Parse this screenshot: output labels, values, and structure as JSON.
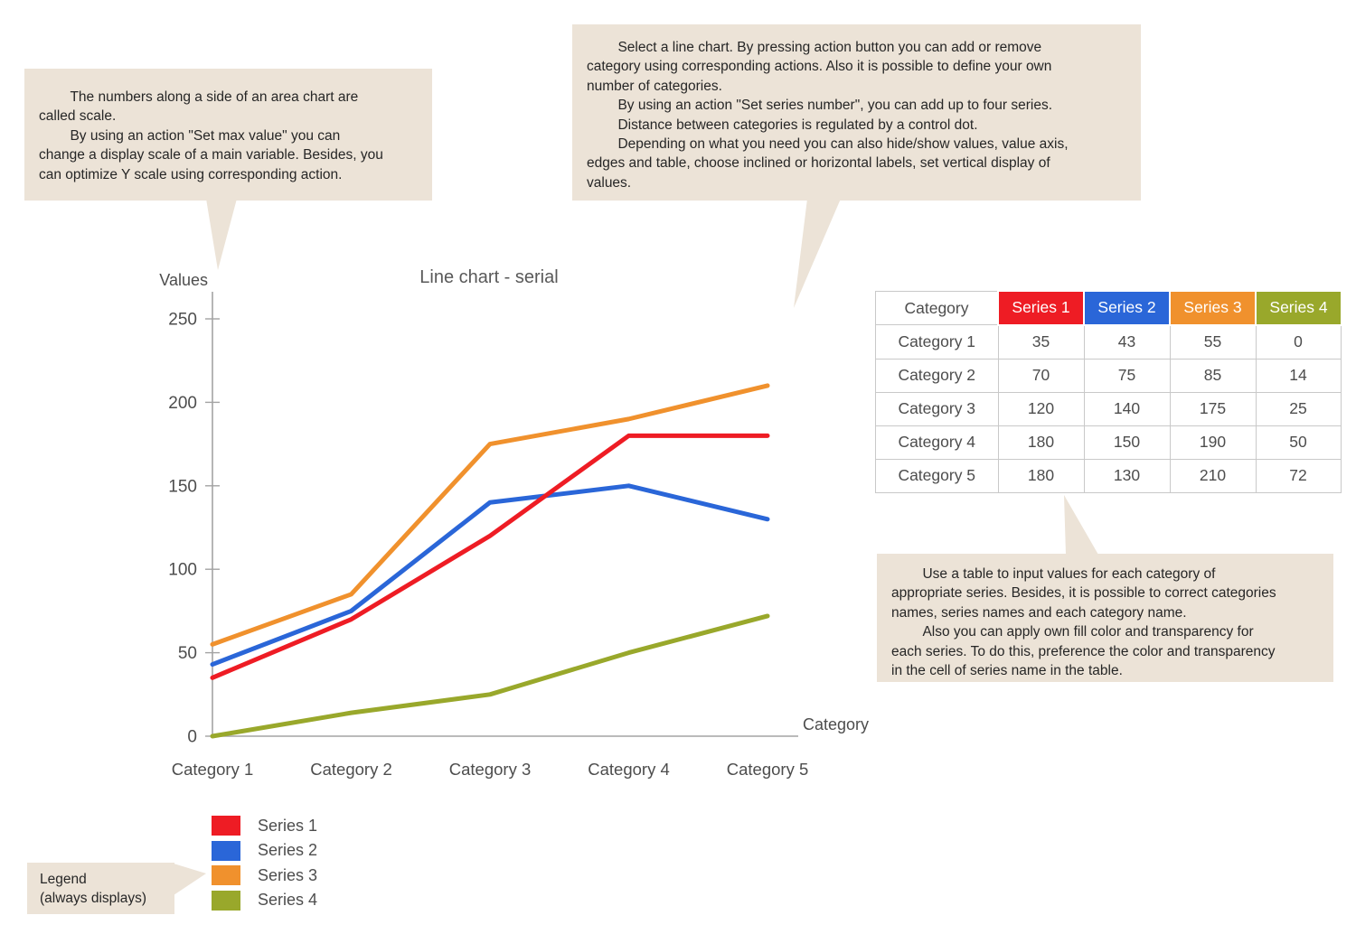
{
  "colors": {
    "callout_bg": "#ece3d7",
    "axis": "#a3a3a3",
    "chart_text": "#4d4d4d",
    "title_text": "#595959",
    "table_border": "#c9c9c9"
  },
  "callouts": {
    "scale_note": "        The numbers along a side of an area chart are\ncalled scale.\n        By using an action \"Set max value\" you can\nchange a display scale of a main variable. Besides, you\ncan optimize Y scale using corresponding action.",
    "chart_note": "        Select a line chart. By pressing action button you can add or remove\ncategory using corresponding actions. Also it is possible to define your own\nnumber of categories.\n        By using an action \"Set series number\", you can add up to four series.\n        Distance between categories is regulated by a control dot.\n        Depending on what you need you can also hide/show values, value axis,\nedges and table, choose inclined or horizontal labels, set vertical display of\nvalues.",
    "table_note": "        Use a table to input values for each category of\nappropriate series. Besides, it is possible to correct categories\nnames, series names and each category name.\n        Also you can apply own fill color and transparency for\neach series. To do this, preference the color and transparency\nin the cell of series name in the table.",
    "legend_note": "Legend\n(always displays)"
  },
  "chart_data": {
    "type": "line",
    "title": "Line chart - serial",
    "xlabel": "Category",
    "ylabel": "Values",
    "categories": [
      "Category 1",
      "Category 2",
      "Category 3",
      "Category 4",
      "Category 5"
    ],
    "y_ticks": [
      0,
      50,
      100,
      150,
      200,
      250
    ],
    "ylim": [
      0,
      250
    ],
    "grid": false,
    "legend_position": "bottom-left",
    "series": [
      {
        "name": "Series 1",
        "color": "#ee1c24",
        "values": [
          35,
          70,
          120,
          180,
          180
        ]
      },
      {
        "name": "Series 2",
        "color": "#2a66d8",
        "values": [
          43,
          75,
          140,
          150,
          130
        ]
      },
      {
        "name": "Series 3",
        "color": "#f0912d",
        "values": [
          55,
          85,
          175,
          190,
          210
        ]
      },
      {
        "name": "Series 4",
        "color": "#99a82b",
        "values": [
          0,
          14,
          25,
          50,
          72
        ]
      }
    ]
  },
  "table": {
    "header": [
      "Category",
      "Series 1",
      "Series 2",
      "Series 3",
      "Series 4"
    ],
    "header_colors": [
      "#ffffff",
      "#ee1c24",
      "#2a66d8",
      "#f0912d",
      "#99a82b"
    ],
    "rows": [
      [
        "Category 1",
        "35",
        "43",
        "55",
        "0"
      ],
      [
        "Category 2",
        "70",
        "75",
        "85",
        "14"
      ],
      [
        "Category 3",
        "120",
        "140",
        "175",
        "25"
      ],
      [
        "Category 4",
        "180",
        "150",
        "190",
        "50"
      ],
      [
        "Category 5",
        "180",
        "130",
        "210",
        "72"
      ]
    ]
  }
}
